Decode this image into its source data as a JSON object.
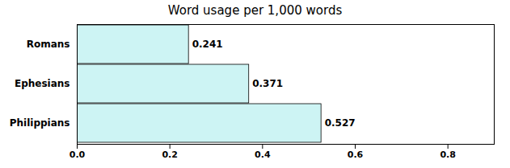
{
  "chart_data": {
    "type": "bar",
    "orientation": "horizontal",
    "title": "Word usage per 1,000 words",
    "categories": [
      "Romans",
      "Ephesians",
      "Philippians"
    ],
    "values": [
      0.241,
      0.371,
      0.527
    ],
    "color": "#cdf4f4",
    "xlim": [
      0.0,
      0.9
    ],
    "xticks": [
      {
        "value": 0,
        "label": "0.0"
      },
      0.2,
      0.4,
      0.6,
      0.8
    ],
    "data_labels": true,
    "grid": false
  }
}
